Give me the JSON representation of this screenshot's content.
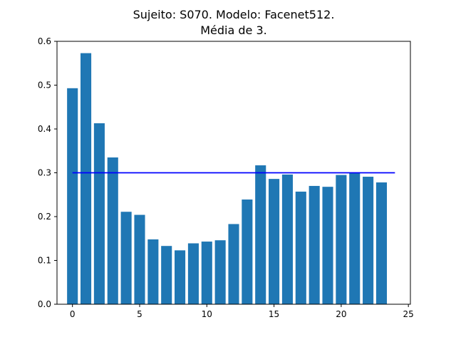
{
  "chart_data": {
    "type": "bar",
    "title": [
      "Sujeito: S070. Modelo: Facenet512.",
      "Média de 3."
    ],
    "xlabel": "",
    "ylabel": "",
    "x": [
      0,
      1,
      2,
      3,
      4,
      5,
      6,
      7,
      8,
      9,
      10,
      11,
      12,
      13,
      14,
      15,
      16,
      17,
      18,
      19,
      20,
      21,
      22,
      23
    ],
    "values": [
      0.493,
      0.573,
      0.413,
      0.335,
      0.211,
      0.204,
      0.148,
      0.133,
      0.123,
      0.139,
      0.143,
      0.146,
      0.183,
      0.239,
      0.317,
      0.286,
      0.296,
      0.257,
      0.27,
      0.268,
      0.295,
      0.3,
      0.291,
      0.278
    ],
    "xlim": [
      -1.15,
      25.15
    ],
    "ylim": [
      0,
      0.6
    ],
    "xticks": [
      0,
      5,
      10,
      15,
      20,
      25
    ],
    "yticks": [
      0.0,
      0.1,
      0.2,
      0.3,
      0.4,
      0.5,
      0.6
    ],
    "xtick_labels": [
      "0",
      "5",
      "10",
      "15",
      "20",
      "25"
    ],
    "ytick_labels": [
      "0.0",
      "0.1",
      "0.2",
      "0.3",
      "0.4",
      "0.5",
      "0.6"
    ],
    "bar_color": "#1f77b4",
    "threshold": {
      "y": 0.3,
      "x_range": [
        0,
        24
      ],
      "color": "#0000ff"
    },
    "grid": false,
    "legend": "none"
  }
}
